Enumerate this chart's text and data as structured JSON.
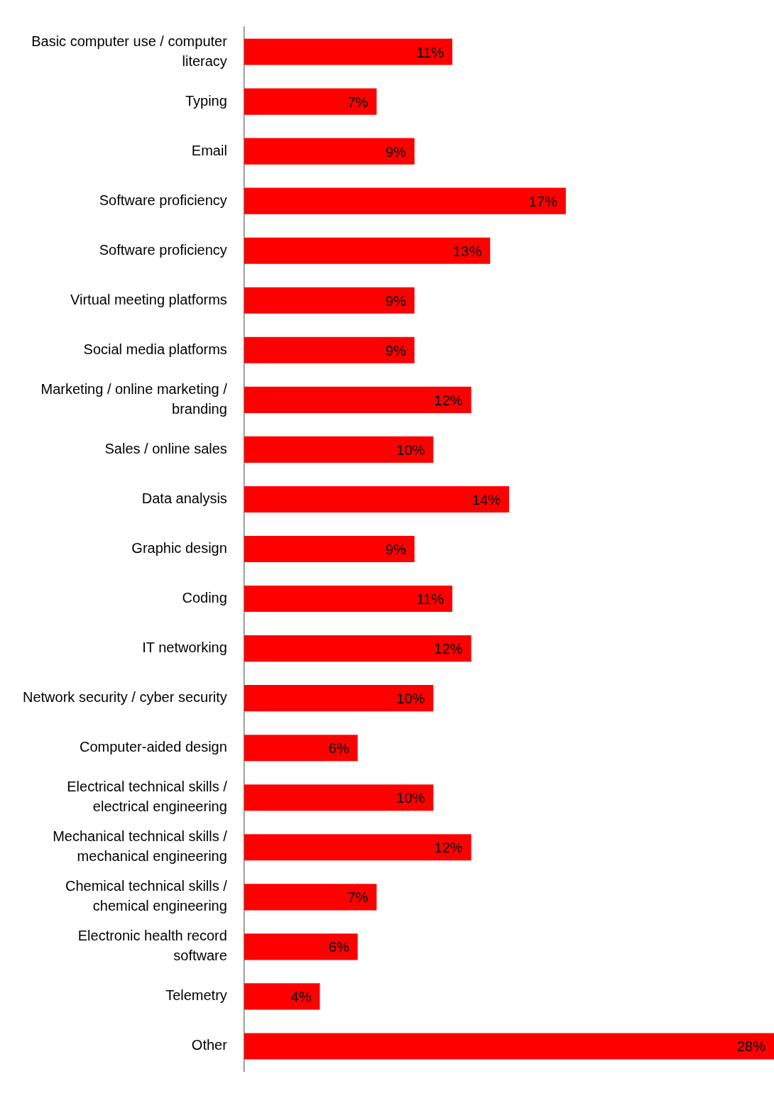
{
  "chart_data": {
    "type": "bar",
    "orientation": "horizontal",
    "color": "#ff0000",
    "xlim": [
      0,
      28
    ],
    "categories": [
      "Basic computer use / computer literacy",
      "Typing",
      "Email",
      "Software proficiency",
      "Software proficiency",
      "Virtual meeting platforms",
      "Social media platforms",
      "Marketing / online marketing / branding",
      "Sales / online sales",
      "Data analysis",
      "Graphic design",
      "Coding",
      "IT networking",
      "Network security / cyber security",
      "Computer-aided design",
      "Electrical technical skills / electrical engineering",
      "Mechanical technical skills / mechanical engineering",
      "Chemical technical skills / chemical engineering",
      "Electronic health record software",
      "Telemetry",
      "Other"
    ],
    "values": [
      11,
      7,
      9,
      17,
      13,
      9,
      9,
      12,
      10,
      14,
      9,
      11,
      12,
      10,
      6,
      10,
      12,
      7,
      6,
      4,
      28
    ],
    "value_labels": [
      "11%",
      "7%",
      "9%",
      "17%",
      "13%",
      "9%",
      "9%",
      "12%",
      "10%",
      "14%",
      "9%",
      "11%",
      "12%",
      "10%",
      "6%",
      "10%",
      "12%",
      "7%",
      "6%",
      "4%",
      "28%"
    ],
    "tick_labels": "y",
    "grid": false,
    "legend": false
  }
}
